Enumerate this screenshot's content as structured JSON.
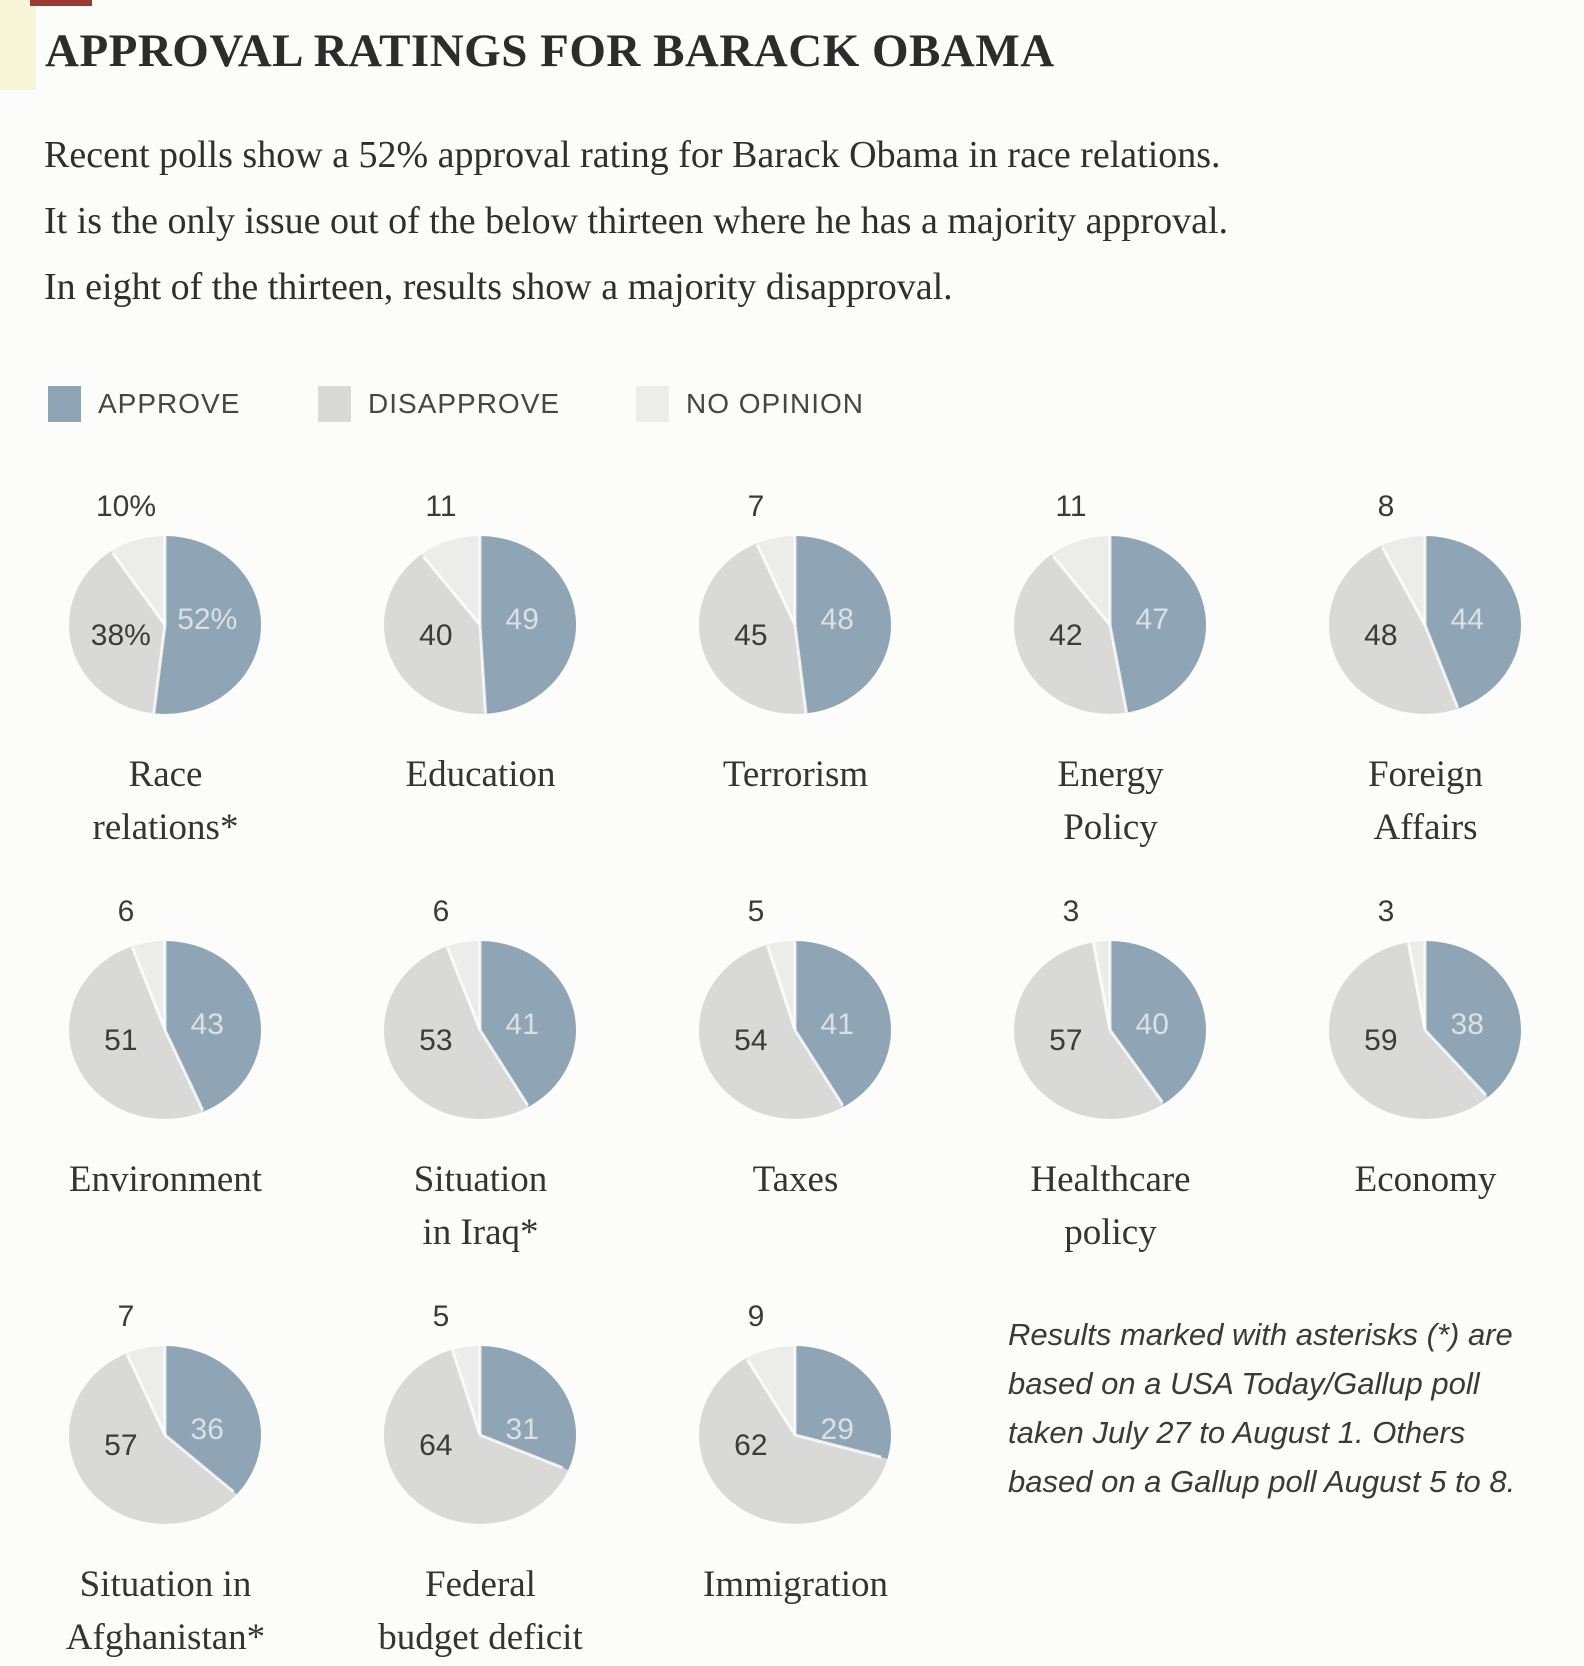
{
  "page": {
    "title": "APPROVAL RATINGS FOR BARACK OBAMA",
    "intro_lines": [
      "Recent polls show a 52% approval rating for Barack Obama in race relations.",
      "It is the only issue out of the below thirteen where he has a majority approval.",
      "In eight of the thirteen, results show a majority disapproval."
    ],
    "footnote_lines": [
      "Results marked with asterisks (*) are",
      "based on a USA Today/Gallup poll",
      "taken July 27 to August 1. Others",
      "based on a Gallup poll August 5 to 8."
    ]
  },
  "legend": [
    {
      "label": "APPROVE",
      "key": "approve"
    },
    {
      "label": "DISAPPROVE",
      "key": "disapprove"
    },
    {
      "label": "NO OPINION",
      "key": "no_opinion"
    }
  ],
  "colors": {
    "approve": "#8fa4b5",
    "disapprove": "#d9dad7",
    "no_opinion": "#ecedea",
    "dark_value_text": "#3b3b3b",
    "approve_value_text": "#d9e1e7"
  },
  "chart_data": {
    "type": "pie",
    "title": "Approval ratings for Barack Obama by issue",
    "unit": "%",
    "slice_order": [
      "approve",
      "disapprove",
      "no_opinion"
    ],
    "slice_start": "12 o'clock, clockwise",
    "legend_position": "top",
    "rows_layout": [
      5,
      5,
      3
    ],
    "charts": [
      {
        "label": "Race relations*",
        "label_lines": [
          "Race",
          "relations*"
        ],
        "approve": 52,
        "disapprove": 38,
        "no_opinion": 10,
        "value_labels": {
          "approve": "52%",
          "disapprove": "38%",
          "no_opinion": "10%"
        }
      },
      {
        "label": "Education",
        "label_lines": [
          "Education"
        ],
        "approve": 49,
        "disapprove": 40,
        "no_opinion": 11,
        "value_labels": {
          "approve": "49",
          "disapprove": "40",
          "no_opinion": "11"
        }
      },
      {
        "label": "Terrorism",
        "label_lines": [
          "Terrorism"
        ],
        "approve": 48,
        "disapprove": 45,
        "no_opinion": 7,
        "value_labels": {
          "approve": "48",
          "disapprove": "45",
          "no_opinion": "7"
        }
      },
      {
        "label": "Energy Policy",
        "label_lines": [
          "Energy",
          "Policy"
        ],
        "approve": 47,
        "disapprove": 42,
        "no_opinion": 11,
        "value_labels": {
          "approve": "47",
          "disapprove": "42",
          "no_opinion": "11"
        }
      },
      {
        "label": "Foreign Affairs",
        "label_lines": [
          "Foreign",
          "Affairs"
        ],
        "approve": 44,
        "disapprove": 48,
        "no_opinion": 8,
        "value_labels": {
          "approve": "44",
          "disapprove": "48",
          "no_opinion": "8"
        }
      },
      {
        "label": "Environment",
        "label_lines": [
          "Environment"
        ],
        "approve": 43,
        "disapprove": 51,
        "no_opinion": 6,
        "value_labels": {
          "approve": "43",
          "disapprove": "51",
          "no_opinion": "6"
        }
      },
      {
        "label": "Situation in Iraq*",
        "label_lines": [
          "Situation",
          "in Iraq*"
        ],
        "approve": 41,
        "disapprove": 53,
        "no_opinion": 6,
        "value_labels": {
          "approve": "41",
          "disapprove": "53",
          "no_opinion": "6"
        }
      },
      {
        "label": "Taxes",
        "label_lines": [
          "Taxes"
        ],
        "approve": 41,
        "disapprove": 54,
        "no_opinion": 5,
        "value_labels": {
          "approve": "41",
          "disapprove": "54",
          "no_opinion": "5"
        }
      },
      {
        "label": "Healthcare policy",
        "label_lines": [
          "Healthcare",
          "policy"
        ],
        "approve": 40,
        "disapprove": 57,
        "no_opinion": 3,
        "value_labels": {
          "approve": "40",
          "disapprove": "57",
          "no_opinion": "3"
        }
      },
      {
        "label": "Economy",
        "label_lines": [
          "Economy"
        ],
        "approve": 38,
        "disapprove": 59,
        "no_opinion": 3,
        "value_labels": {
          "approve": "38",
          "disapprove": "59",
          "no_opinion": "3"
        }
      },
      {
        "label": "Situation in Afghanistan*",
        "label_lines": [
          "Situation in",
          "Afghanistan*"
        ],
        "approve": 36,
        "disapprove": 57,
        "no_opinion": 7,
        "value_labels": {
          "approve": "36",
          "disapprove": "57",
          "no_opinion": "7"
        }
      },
      {
        "label": "Federal budget deficit",
        "label_lines": [
          "Federal",
          "budget deficit"
        ],
        "approve": 31,
        "disapprove": 64,
        "no_opinion": 5,
        "value_labels": {
          "approve": "31",
          "disapprove": "64",
          "no_opinion": "5"
        }
      },
      {
        "label": "Immigration",
        "label_lines": [
          "Immigration"
        ],
        "approve": 29,
        "disapprove": 62,
        "no_opinion": 9,
        "value_labels": {
          "approve": "29",
          "disapprove": "62",
          "no_opinion": "9"
        }
      }
    ]
  }
}
